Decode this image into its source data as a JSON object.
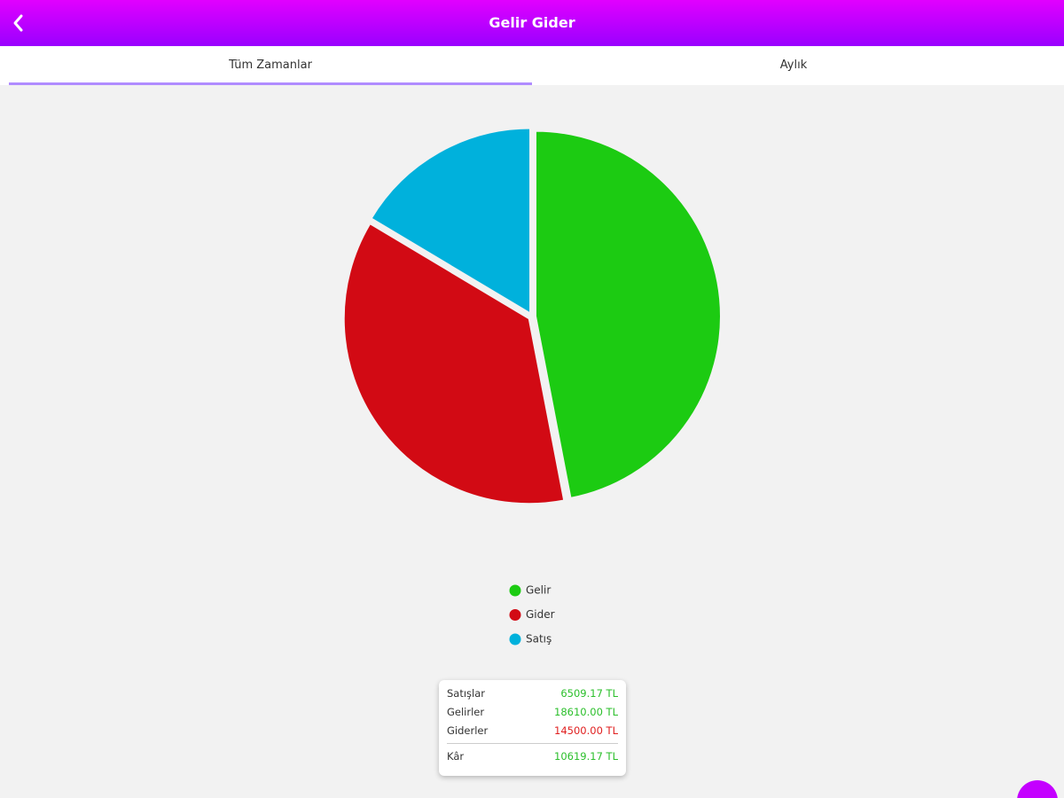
{
  "header": {
    "title": "Gelir Gider"
  },
  "tabs": [
    "Tüm Zamanlar",
    "Aylık"
  ],
  "chart_data": {
    "type": "pie",
    "categories": [
      "Gelir",
      "Gider",
      "Satış"
    ],
    "values": [
      18610.0,
      14500.0,
      6509.17
    ],
    "colors": [
      "#1ccb12",
      "#d20a14",
      "#00b1dc"
    ]
  },
  "summary": {
    "rows": [
      [
        "Satışlar",
        "6509.17 TL"
      ],
      [
        "Gelirler",
        "18610.00 TL"
      ],
      [
        "Giderler",
        "14500.00 TL"
      ]
    ],
    "total": [
      "Kâr",
      "10619.17 TL"
    ]
  }
}
